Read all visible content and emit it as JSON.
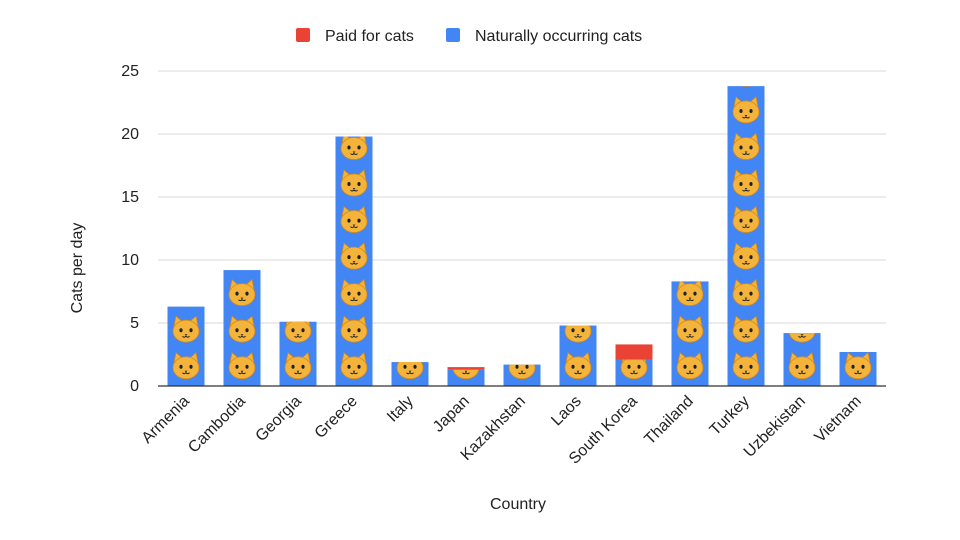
{
  "chart_data": {
    "type": "bar",
    "stacked": true,
    "categories": [
      "Armenia",
      "Cambodia",
      "Georgia",
      "Greece",
      "Italy",
      "Japan",
      "Kazakhstan",
      "Laos",
      "South Korea",
      "Thailand",
      "Turkey",
      "Uzbekistan",
      "Vietnam"
    ],
    "series": [
      {
        "name": "Naturally occurring cats",
        "color": "#4285f4",
        "values": [
          6.3,
          9.2,
          5.1,
          19.8,
          1.9,
          1.3,
          1.7,
          4.8,
          2.1,
          8.3,
          23.8,
          4.2,
          2.7
        ]
      },
      {
        "name": "Paid for cats",
        "color": "#ea4335",
        "values": [
          0,
          0,
          0,
          0,
          0,
          0.2,
          0,
          0,
          1.2,
          0,
          0,
          0,
          0
        ]
      }
    ],
    "legend_order": [
      "Paid for cats",
      "Naturally occurring cats"
    ],
    "legend_position": "top",
    "xlabel": "Country",
    "ylabel": "Cats per day",
    "ylim": [
      0,
      25
    ],
    "yticks": [
      "0",
      "5",
      "10",
      "15",
      "20",
      "25"
    ],
    "grid": true,
    "marker": "cat-face-emoji"
  }
}
